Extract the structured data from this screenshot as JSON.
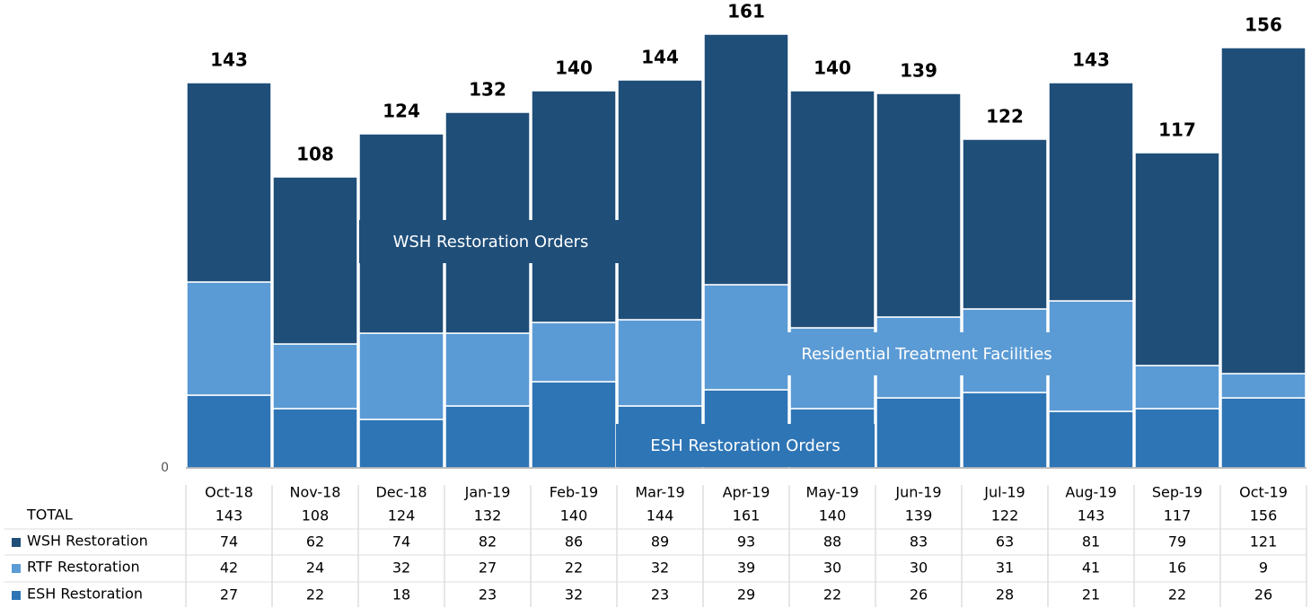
{
  "chart_data": {
    "type": "stacked_bar",
    "categories": [
      "Oct-18",
      "Nov-18",
      "Dec-18",
      "Jan-19",
      "Feb-19",
      "Mar-19",
      "Apr-19",
      "May-19",
      "Jun-19",
      "Jul-19",
      "Aug-19",
      "Sep-19",
      "Oct-19"
    ],
    "series": [
      {
        "name": "ESH Restoration",
        "color": "#2e75b6",
        "values": [
          27,
          22,
          18,
          23,
          32,
          23,
          29,
          22,
          26,
          28,
          21,
          22,
          26
        ]
      },
      {
        "name": "RTF Restoration",
        "color": "#5b9bd5",
        "values": [
          42,
          24,
          32,
          27,
          22,
          32,
          39,
          30,
          30,
          31,
          41,
          16,
          9
        ]
      },
      {
        "name": "WSH Restoration",
        "color": "#1f4e79",
        "values": [
          74,
          62,
          74,
          82,
          86,
          89,
          93,
          88,
          83,
          63,
          81,
          79,
          121
        ]
      }
    ],
    "total_label": "TOTAL",
    "totals": [
      143,
      108,
      124,
      132,
      140,
      144,
      161,
      140,
      139,
      122,
      143,
      117,
      156
    ],
    "annotations": [
      "WSH Restoration Orders",
      "Residential Treatment Facilities",
      "ESH Restoration Orders"
    ],
    "ylim": [
      0,
      170
    ],
    "yticks": [
      0
    ]
  }
}
